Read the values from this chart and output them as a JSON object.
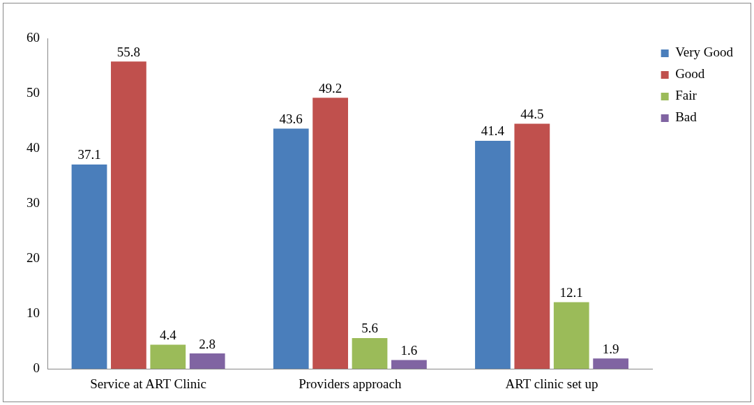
{
  "chart_data": {
    "type": "bar",
    "categories": [
      "Service at ART Clinic",
      "Providers approach",
      "ART clinic set up"
    ],
    "series": [
      {
        "name": "Very Good",
        "color": "#4a7ebb",
        "values": [
          37.1,
          43.6,
          41.4
        ]
      },
      {
        "name": "Good",
        "color": "#c0504d",
        "values": [
          55.8,
          49.2,
          44.5
        ]
      },
      {
        "name": "Fair",
        "color": "#9bbb59",
        "values": [
          4.4,
          5.6,
          12.1
        ]
      },
      {
        "name": "Bad",
        "color": "#8064a2",
        "values": [
          2.8,
          1.6,
          1.9
        ]
      }
    ],
    "ylim": [
      0,
      60
    ],
    "yticks": [
      0,
      10,
      20,
      30,
      40,
      50,
      60
    ],
    "grid": false,
    "legend": "top right",
    "data_labels": true
  }
}
